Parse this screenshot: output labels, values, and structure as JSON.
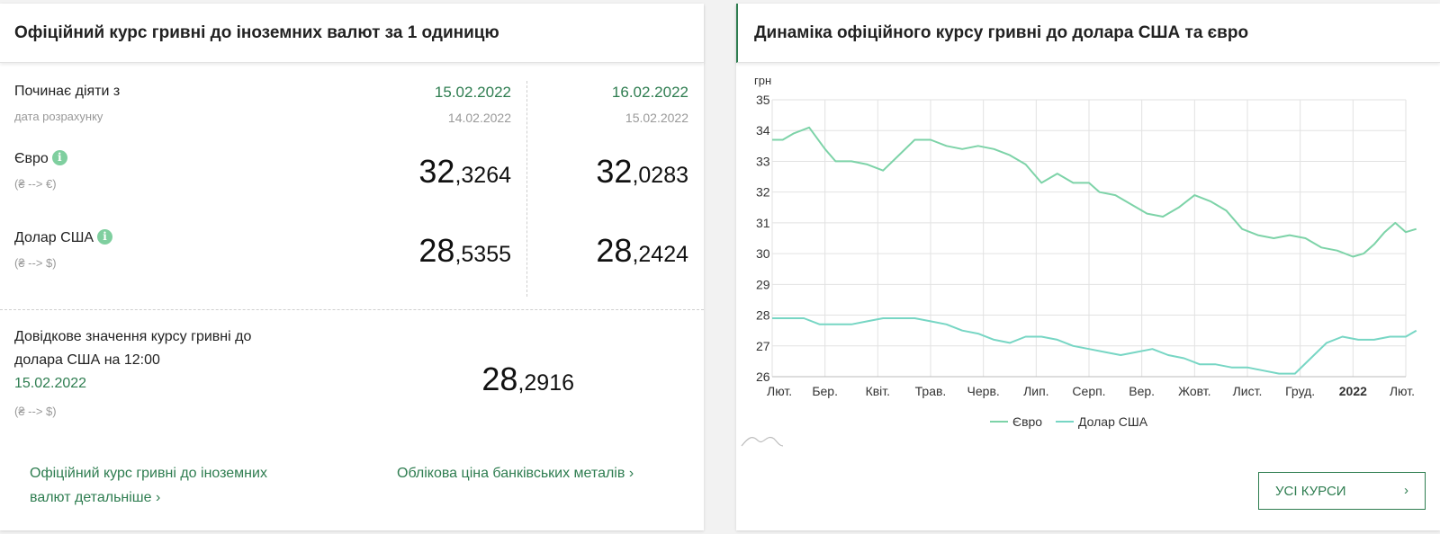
{
  "rates_card": {
    "title": "Офіційний курс гривні до іноземних валют за 1 одиницю",
    "starts_label": "Починає діяти з",
    "calc_label": "дата розрахунку",
    "columns": [
      {
        "date": "15.02.2022",
        "calc_date": "14.02.2022",
        "eur_int": "32",
        "eur_frac": ",3264",
        "usd_int": "28",
        "usd_frac": ",5355"
      },
      {
        "date": "16.02.2022",
        "calc_date": "15.02.2022",
        "eur_int": "32",
        "eur_frac": ",0283",
        "usd_int": "28",
        "usd_frac": ",2424"
      }
    ],
    "eur_label": "Євро",
    "eur_sub": "(₴ --> €)",
    "usd_label": "Долар США",
    "usd_sub": "(₴ --> $)",
    "info_glyph": "i",
    "reference": {
      "line1": "Довідкове значення курсу гривні до",
      "line2": "долара США на 12:00",
      "date": "15.02.2022",
      "sub": "(₴ --> $)",
      "value_int": "28",
      "value_frac": ",2916"
    },
    "link_detail_line1": "Офіційний курс гривні до іноземних",
    "link_detail_line2": "валют детальніше",
    "link_metals": "Облікова ціна банківських металів",
    "chevron": "›"
  },
  "chart_card": {
    "title": "Динаміка офіційного курсу гривні до долара США та євро",
    "button_label": "УСІ КУРСИ",
    "button_chevron": "›"
  },
  "chart_data": {
    "type": "line",
    "ylabel": "грн",
    "ylim": [
      26,
      35
    ],
    "yticks": [
      26,
      27,
      28,
      29,
      30,
      31,
      32,
      33,
      34,
      35
    ],
    "x_labels": [
      "Лют.",
      "Бер.",
      "Квіт.",
      "Трав.",
      "Черв.",
      "Лип.",
      "Серп.",
      "Вер.",
      "Жовт.",
      "Лист.",
      "Груд.",
      "2022",
      "Лют."
    ],
    "x_label_bold": "2022",
    "grid": true,
    "legend_position": "bottom",
    "colors": {
      "eur": "#7dd3a8",
      "usd": "#77d6c4"
    },
    "series": [
      {
        "name": "Євро",
        "key": "eur",
        "x": [
          0,
          0.2,
          0.4,
          0.7,
          1.0,
          1.2,
          1.5,
          1.8,
          2.1,
          2.4,
          2.7,
          3.0,
          3.3,
          3.6,
          3.9,
          4.2,
          4.5,
          4.8,
          5.1,
          5.4,
          5.7,
          6.0,
          6.2,
          6.5,
          6.8,
          7.1,
          7.4,
          7.7,
          8.0,
          8.3,
          8.6,
          8.9,
          9.2,
          9.5,
          9.8,
          10.1,
          10.4,
          10.7,
          11.0,
          11.2,
          11.4,
          11.6,
          11.8,
          12.0,
          12.2
        ],
        "values": [
          33.7,
          33.7,
          33.9,
          34.1,
          33.4,
          33.0,
          33.0,
          32.9,
          32.7,
          33.2,
          33.7,
          33.7,
          33.5,
          33.4,
          33.5,
          33.4,
          33.2,
          32.9,
          32.3,
          32.6,
          32.3,
          32.3,
          32.0,
          31.9,
          31.6,
          31.3,
          31.2,
          31.5,
          31.9,
          31.7,
          31.4,
          30.8,
          30.6,
          30.5,
          30.6,
          30.5,
          30.2,
          30.1,
          29.9,
          30.0,
          30.3,
          30.7,
          31.0,
          30.7,
          30.8
        ]
      },
      {
        "name": "Долар США",
        "key": "usd",
        "x": [
          0,
          0.3,
          0.6,
          0.9,
          1.2,
          1.5,
          1.8,
          2.1,
          2.4,
          2.7,
          3.0,
          3.3,
          3.6,
          3.9,
          4.2,
          4.5,
          4.8,
          5.1,
          5.4,
          5.7,
          6.0,
          6.3,
          6.6,
          6.9,
          7.2,
          7.5,
          7.8,
          8.1,
          8.4,
          8.7,
          9.0,
          9.3,
          9.6,
          9.9,
          10.2,
          10.5,
          10.8,
          11.1,
          11.4,
          11.7,
          12.0,
          12.2
        ],
        "values": [
          27.9,
          27.9,
          27.9,
          27.7,
          27.7,
          27.7,
          27.8,
          27.9,
          27.9,
          27.9,
          27.8,
          27.7,
          27.5,
          27.4,
          27.2,
          27.1,
          27.3,
          27.3,
          27.2,
          27.0,
          26.9,
          26.8,
          26.7,
          26.8,
          26.9,
          26.7,
          26.6,
          26.4,
          26.4,
          26.3,
          26.3,
          26.2,
          26.1,
          26.1,
          26.6,
          27.1,
          27.3,
          27.2,
          27.2,
          27.3,
          27.3,
          27.5
        ]
      }
    ]
  }
}
